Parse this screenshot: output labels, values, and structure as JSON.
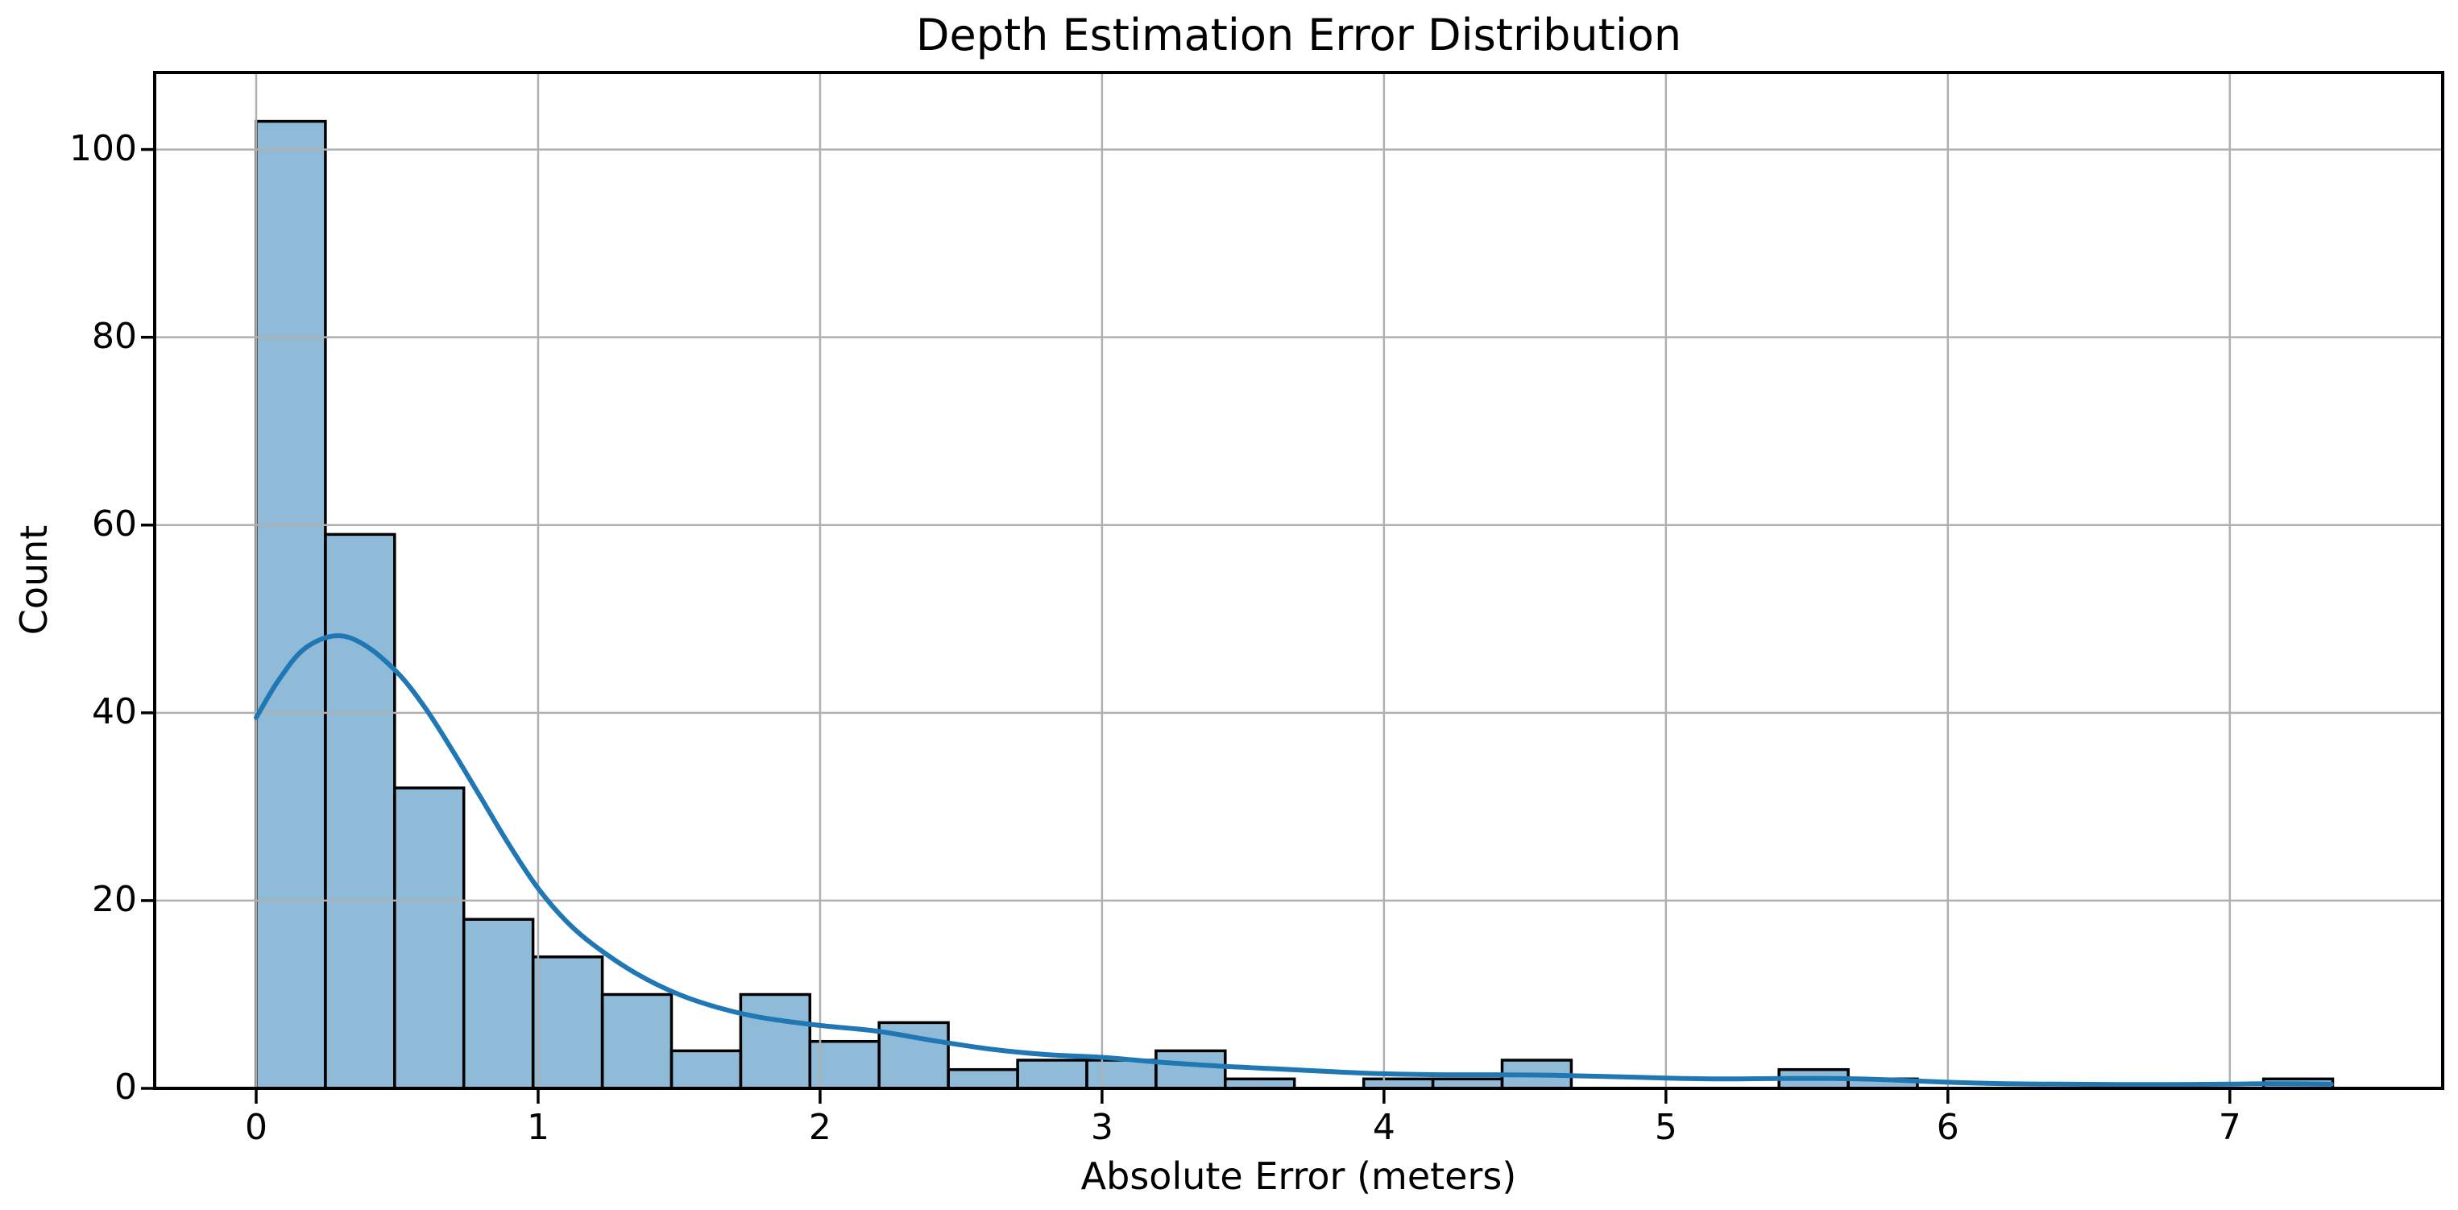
{
  "chart_data": {
    "type": "bar",
    "subtype": "histogram_with_kde",
    "title": "Depth Estimation Error Distribution",
    "xlabel": "Absolute Error (meters)",
    "ylabel": "Count",
    "bins": {
      "start": 0,
      "width": 0.2455,
      "count": 30
    },
    "bin_counts": [
      103,
      59,
      32,
      18,
      14,
      10,
      4,
      10,
      5,
      7,
      2,
      3,
      3,
      4,
      1,
      0,
      1,
      1,
      3,
      0,
      0,
      0,
      2,
      1,
      0,
      0,
      0,
      0,
      0,
      1
    ],
    "kde_curve": {
      "x": [
        0,
        0.08,
        0.17,
        0.28,
        0.38,
        0.5,
        0.6,
        0.7,
        0.8,
        0.9,
        1.0,
        1.1,
        1.2,
        1.35,
        1.5,
        1.65,
        1.8,
        2.0,
        2.2,
        2.4,
        2.6,
        2.8,
        3.0,
        3.2,
        3.4,
        3.6,
        3.8,
        4.0,
        4.2,
        4.4,
        4.6,
        4.8,
        5.0,
        5.2,
        5.4,
        5.6,
        5.8,
        6.0,
        6.2,
        6.4,
        6.6,
        6.8,
        7.0,
        7.15,
        7.36
      ],
      "y": [
        39.5,
        43.5,
        46.8,
        48.2,
        47.3,
        44.3,
        40.5,
        35.8,
        30.8,
        25.8,
        21.3,
        17.8,
        15.2,
        12.2,
        10.0,
        8.5,
        7.5,
        6.7,
        6.1,
        5.1,
        4.2,
        3.6,
        3.3,
        2.8,
        2.4,
        2.1,
        1.8,
        1.55,
        1.45,
        1.45,
        1.4,
        1.25,
        1.1,
        1.0,
        1.05,
        1.05,
        0.9,
        0.65,
        0.5,
        0.45,
        0.4,
        0.4,
        0.45,
        0.5,
        0.45
      ]
    },
    "x_ticks": [
      0,
      1,
      2,
      3,
      4,
      5,
      6,
      7
    ],
    "y_ticks": [
      0,
      20,
      40,
      60,
      80,
      100
    ],
    "xlim": [
      -0.36,
      7.755
    ],
    "ylim": [
      0,
      108.2
    ],
    "grid": true,
    "legend_position": "none",
    "colors": {
      "bar_fill": "rgba(31,119,180,0.5)",
      "bar_edge": "#000000",
      "kde_line": "#1f77b4",
      "grid_line": "#b0b0b0",
      "spine": "#000000",
      "text": "#000000",
      "background": "#ffffff"
    }
  }
}
